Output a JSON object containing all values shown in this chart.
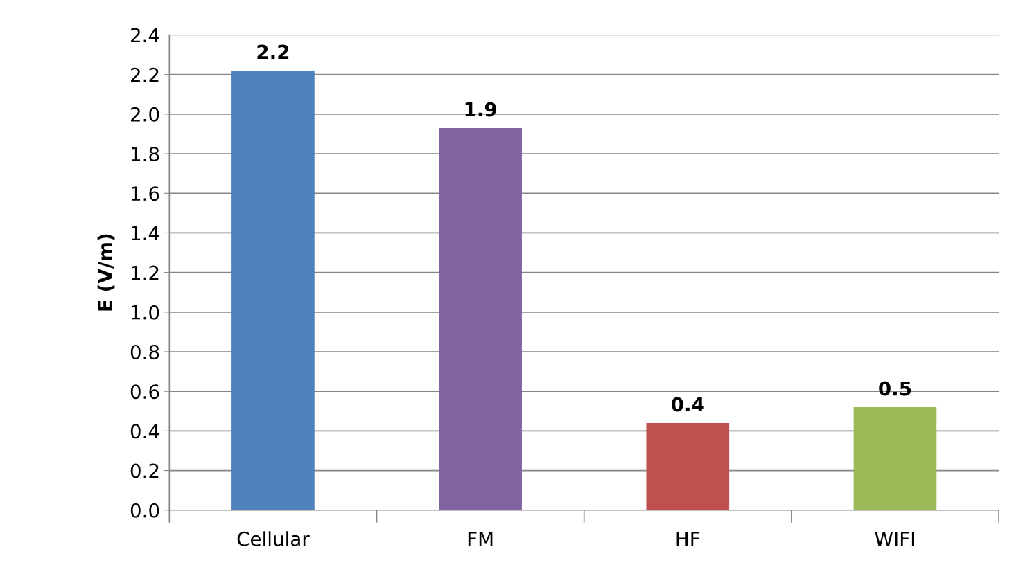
{
  "chart_data": {
    "type": "bar",
    "ylabel": "E (V/m)",
    "categories": [
      "Cellular",
      "FM",
      "HF",
      "WIFI"
    ],
    "values": [
      2.22,
      1.93,
      0.44,
      0.52
    ],
    "value_labels": [
      "2.2",
      "1.9",
      "0.4",
      "0.5"
    ],
    "colors": [
      "#4f81bd",
      "#8064a2",
      "#c0504d",
      "#9bbb59"
    ],
    "ylim": [
      0,
      2.4
    ],
    "yticks": [
      "0.0",
      "0.2",
      "0.4",
      "0.6",
      "0.8",
      "1.0",
      "1.2",
      "1.4",
      "1.6",
      "1.8",
      "2.0",
      "2.2",
      "2.4"
    ],
    "grid": "y",
    "legend": false
  }
}
